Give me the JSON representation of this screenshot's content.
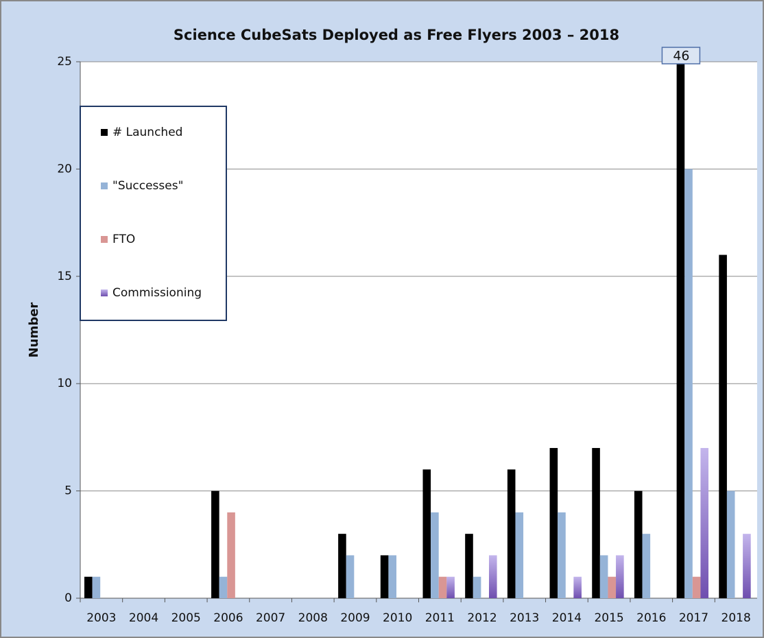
{
  "chart_data": {
    "type": "bar",
    "title": "Science CubeSats Deployed as Free Flyers 2003 – 2018",
    "y_label": "Number",
    "categories": [
      "2003",
      "2004",
      "2005",
      "2006",
      "2007",
      "2008",
      "2009",
      "2010",
      "2011",
      "2012",
      "2013",
      "2014",
      "2015",
      "2016",
      "2017",
      "2018"
    ],
    "series": [
      {
        "name": "# Launched",
        "color": "#000000",
        "values": [
          1,
          0,
          0,
          5,
          0,
          0,
          3,
          2,
          6,
          3,
          6,
          7,
          7,
          5,
          46,
          16
        ],
        "value_labels": [
          null,
          null,
          null,
          null,
          null,
          null,
          null,
          null,
          null,
          null,
          null,
          null,
          null,
          null,
          "46",
          null
        ]
      },
      {
        "name": "\"Successes\"",
        "color": "#95b3d7",
        "values": [
          1,
          0,
          0,
          1,
          0,
          0,
          2,
          2,
          4,
          1,
          4,
          4,
          2,
          3,
          20,
          5
        ]
      },
      {
        "name": "FTO",
        "color": "#d99694",
        "values": [
          0,
          0,
          0,
          4,
          0,
          0,
          0,
          0,
          1,
          0,
          0,
          0,
          1,
          0,
          1,
          0
        ]
      },
      {
        "name": "Commissioning",
        "color": "#9b85d2",
        "values": [
          0,
          0,
          0,
          0,
          0,
          0,
          0,
          0,
          1,
          2,
          0,
          1,
          2,
          0,
          7,
          3
        ]
      }
    ],
    "ylim": [
      0,
      25
    ],
    "yticks": [
      0,
      5,
      10,
      15,
      20,
      25
    ],
    "grid": true,
    "legend": "upper left"
  }
}
